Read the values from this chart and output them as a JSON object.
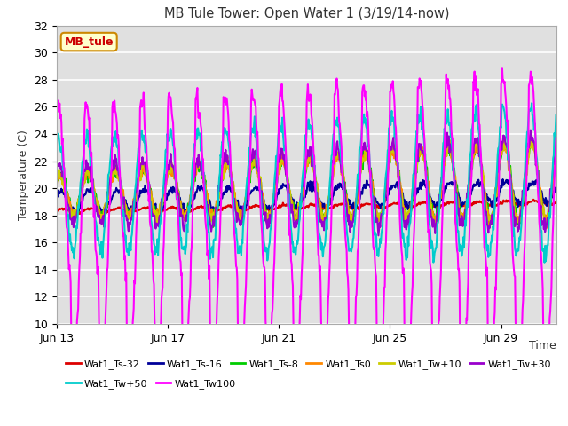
{
  "title": "MB Tule Tower: Open Water 1 (3/19/14-now)",
  "ylabel": "Temperature (C)",
  "ylim": [
    10,
    32
  ],
  "yticks": [
    10,
    12,
    14,
    16,
    18,
    20,
    22,
    24,
    26,
    28,
    30,
    32
  ],
  "plot_bg_color": "#e0e0e0",
  "grid_color": "#ffffff",
  "series": [
    {
      "label": "Wat1_Ts-32",
      "color": "#dd0000",
      "lw": 1.5
    },
    {
      "label": "Wat1_Ts-16",
      "color": "#000099",
      "lw": 1.5
    },
    {
      "label": "Wat1_Ts-8",
      "color": "#00cc00",
      "lw": 1.5
    },
    {
      "label": "Wat1_Ts0",
      "color": "#ff8800",
      "lw": 1.5
    },
    {
      "label": "Wat1_Tw+10",
      "color": "#cccc00",
      "lw": 1.5
    },
    {
      "label": "Wat1_Tw+30",
      "color": "#9900cc",
      "lw": 1.5
    },
    {
      "label": "Wat1_Tw+50",
      "color": "#00cccc",
      "lw": 1.5
    },
    {
      "label": "Wat1_Tw100",
      "color": "#ff00ff",
      "lw": 1.5
    }
  ],
  "xtick_positions": [
    0,
    4,
    8,
    12,
    16
  ],
  "xtick_labels": [
    "Jun 13",
    "Jun 17",
    "Jun 21",
    "Jun 25",
    "Jun 29"
  ],
  "tag_label": "MB_tule",
  "tag_bg": "#ffffcc",
  "tag_border": "#cc8800",
  "tag_text_color": "#cc0000",
  "fig_bg": "#ffffff",
  "legend_ncol": 6,
  "legend_row2": [
    "Wat1_Tw+50",
    "Wat1_Tw100"
  ]
}
